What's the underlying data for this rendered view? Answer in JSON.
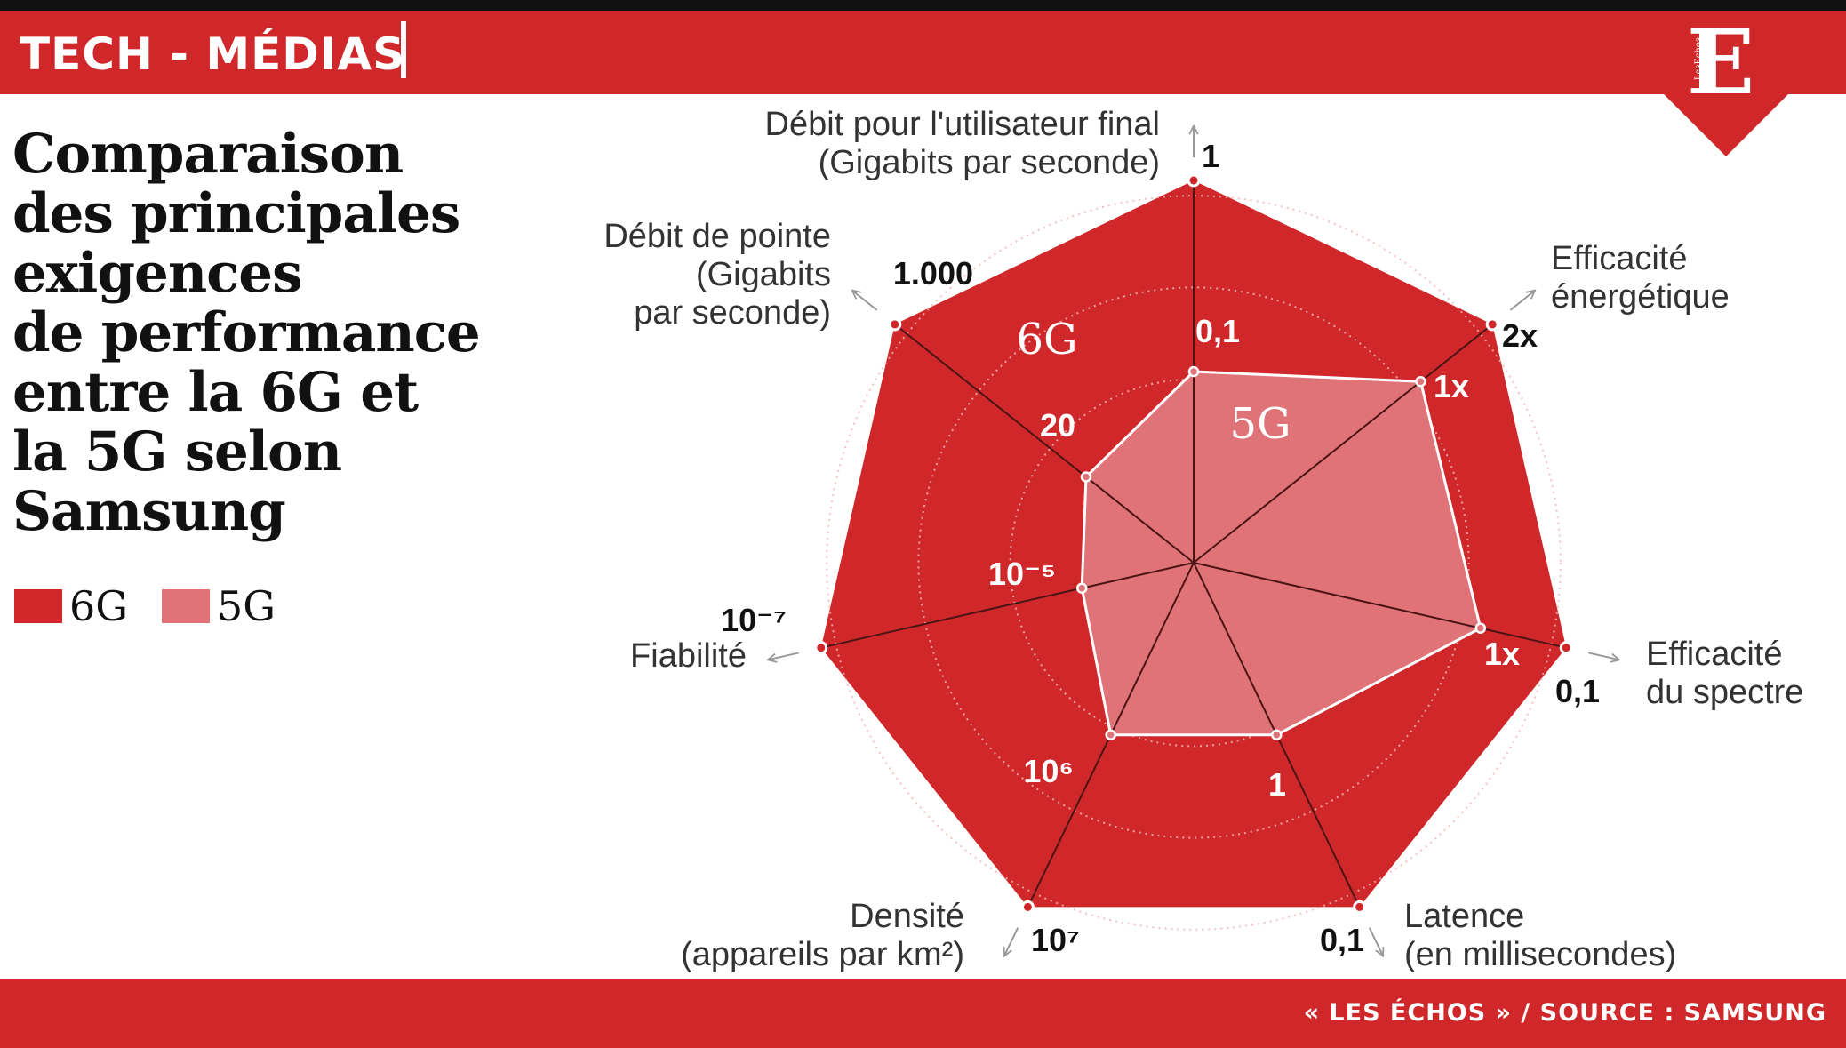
{
  "header": {
    "section": "TECH - MÉDIAS",
    "logo_letter": "E",
    "logo_small": "LesEchos"
  },
  "title": "Comparaison\ndes principales\nexigences\nde performance\nentre la 6G et\nla 5G selon\nSamsung",
  "legend": [
    {
      "label": "6G",
      "color": "#d0282a"
    },
    {
      "label": "5G",
      "color": "#e07377"
    }
  ],
  "footer": {
    "source": "« LES ÉCHOS »  / SOURCE : SAMSUNG"
  },
  "colors": {
    "brand": "#d0282a",
    "light": "#e07377",
    "grid": "#f2b7b7"
  },
  "chart_data": {
    "type": "radar",
    "title": "",
    "center_labels": {
      "6G": "6G",
      "5G": "5G"
    },
    "axes": [
      {
        "name": "Débit pour l'utilisateur final",
        "unit": "(Gigabits par seconde)",
        "value_6g": "1",
        "value_5g": "0,1",
        "level_5g": 0.5
      },
      {
        "name": "Efficacité",
        "unit": "énergétique",
        "value_6g": "2x",
        "value_5g": "1x",
        "level_5g": 0.76
      },
      {
        "name": "Efficacité",
        "unit": "du spectre",
        "value_6g": "0,1",
        "value_5g": "1x",
        "level_5g": 0.77
      },
      {
        "name": "Latence",
        "unit": "(en millisecondes)",
        "value_6g": "0,1",
        "value_5g": "1",
        "level_5g": 0.5
      },
      {
        "name": "Densité",
        "unit": "(appareils par km²)",
        "value_6g": "10⁷",
        "value_5g": "10⁶",
        "level_5g": 0.5
      },
      {
        "name": "Fiabilité",
        "unit": "",
        "value_6g": "10⁻⁷",
        "value_5g": "10⁻⁵",
        "level_5g": 0.3
      },
      {
        "name": "Débit de pointe",
        "unit": "(Gigabits\npar seconde)",
        "value_6g": "1.000",
        "value_5g": "20",
        "level_5g": 0.36
      }
    ],
    "series": [
      {
        "name": "6G",
        "values": [
          1,
          1,
          1,
          1,
          1,
          1,
          1
        ]
      },
      {
        "name": "5G",
        "values": [
          0.5,
          0.76,
          0.77,
          0.5,
          0.5,
          0.3,
          0.36
        ]
      }
    ],
    "grid": true,
    "legend_position": "left"
  }
}
